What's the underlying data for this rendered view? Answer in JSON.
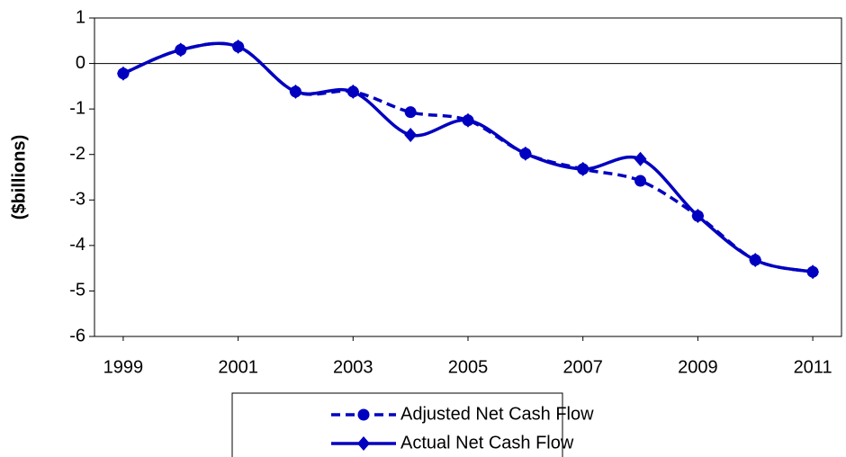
{
  "chart_data": {
    "type": "line",
    "y_label": "($billions)",
    "x": [
      1999,
      2000,
      2001,
      2002,
      2003,
      2004,
      2005,
      2006,
      2007,
      2008,
      2009,
      2010,
      2011
    ],
    "series": [
      {
        "name": "Adjusted Net Cash Flow",
        "color": "#0000c0",
        "dash": true,
        "marker": "circle",
        "values": [
          -0.22,
          0.3,
          0.37,
          -0.62,
          -0.62,
          -1.07,
          -1.25,
          -1.98,
          -2.32,
          -2.58,
          -3.35,
          -4.32,
          -4.58
        ]
      },
      {
        "name": "Actual Net Cash Flow",
        "color": "#0000c0",
        "dash": false,
        "marker": "diamond",
        "values": [
          -0.22,
          0.3,
          0.37,
          -0.62,
          -0.62,
          -1.57,
          -1.25,
          -1.98,
          -2.32,
          -2.1,
          -3.35,
          -4.32,
          -4.58
        ]
      }
    ],
    "xlim": [
      1998.5,
      2011.5
    ],
    "xticks": [
      1999,
      2001,
      2003,
      2005,
      2007,
      2009,
      2011
    ],
    "ylim": [
      -6,
      1
    ],
    "yticks": [
      -6,
      -5,
      -4,
      -3,
      -2,
      -1,
      0,
      1
    ],
    "smooth": true,
    "legend": "bottom"
  }
}
